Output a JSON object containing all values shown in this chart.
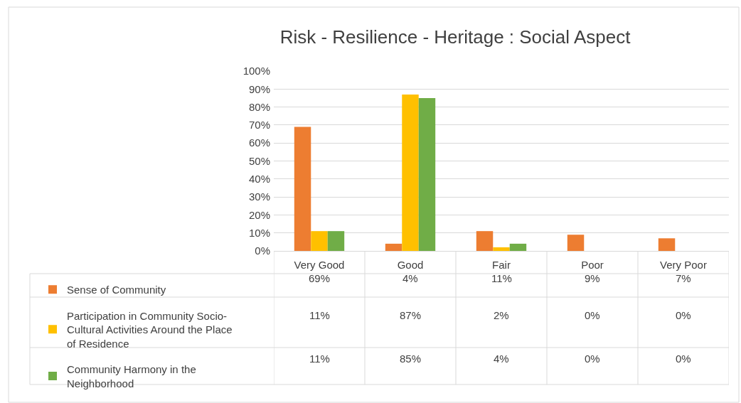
{
  "chart_data": {
    "type": "bar",
    "title": "Risk - Resilience - Heritage : Social Aspect",
    "categories": [
      "Very Good",
      "Good",
      "Fair",
      "Poor",
      "Very Poor"
    ],
    "series": [
      {
        "name": "Sense of Community",
        "color": "#ed7d31",
        "values": [
          69,
          4,
          11,
          9,
          7
        ],
        "value_labels": [
          "69%",
          "4%",
          "11%",
          "9%",
          "7%"
        ]
      },
      {
        "name": "Participation in Community Socio-Cultural Activities Around the Place of Residence",
        "color": "#ffc000",
        "values": [
          11,
          87,
          2,
          0,
          0
        ],
        "value_labels": [
          "11%",
          "87%",
          "2%",
          "0%",
          "0%"
        ]
      },
      {
        "name": "Community Harmony in the Neighborhood",
        "color": "#70ad47",
        "values": [
          11,
          85,
          4,
          0,
          0
        ],
        "value_labels": [
          "11%",
          "85%",
          "4%",
          "0%",
          "0%"
        ]
      }
    ],
    "ylim": [
      0,
      100
    ],
    "yticks": [
      {
        "value": 0,
        "label": "0%"
      },
      {
        "value": 10,
        "label": "10%"
      },
      {
        "value": 20,
        "label": "20%"
      },
      {
        "value": 30,
        "label": "30%"
      },
      {
        "value": 40,
        "label": "40%"
      },
      {
        "value": 50,
        "label": "50%"
      },
      {
        "value": 60,
        "label": "60%"
      },
      {
        "value": 70,
        "label": "70%"
      },
      {
        "value": 80,
        "label": "80%"
      },
      {
        "value": 90,
        "label": "90%"
      },
      {
        "value": 100,
        "label": "100%"
      }
    ],
    "grid": "y",
    "legend": "bottom"
  }
}
